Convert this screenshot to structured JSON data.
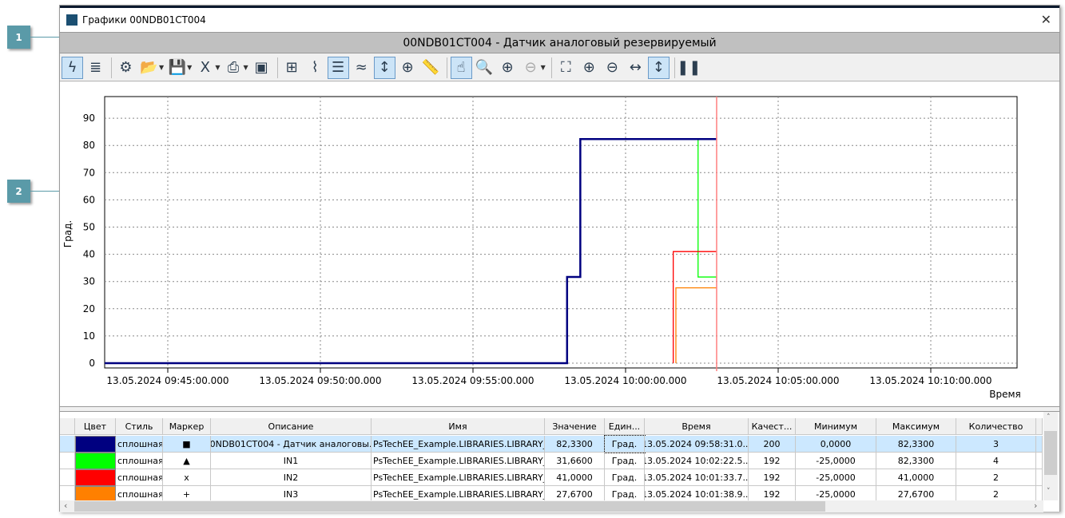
{
  "window": {
    "title": "Графики 00NDB01CT004",
    "close": "✕",
    "header": "00NDB01CT004 - Датчик аналоговый резервируемый"
  },
  "callouts": [
    "1",
    "2"
  ],
  "toolbar": [
    {
      "icon": "lightning-icon",
      "glyph": "ϟ",
      "on": true
    },
    {
      "icon": "database-icon",
      "glyph": "≣"
    },
    {
      "sep": true
    },
    {
      "icon": "gear-icon",
      "glyph": "⚙"
    },
    {
      "icon": "folder-open-icon",
      "glyph": "📂",
      "dd": true
    },
    {
      "icon": "save-icon",
      "glyph": "💾",
      "dd": true
    },
    {
      "icon": "excel-icon",
      "glyph": "X",
      "dd": true
    },
    {
      "icon": "print-icon",
      "glyph": "⎙",
      "dd": true
    },
    {
      "icon": "image-icon",
      "glyph": "▣"
    },
    {
      "sep": true
    },
    {
      "icon": "tree-icon",
      "glyph": "⊞"
    },
    {
      "icon": "signal-icon",
      "glyph": "⌇"
    },
    {
      "icon": "list-icon",
      "glyph": "☰",
      "on": true
    },
    {
      "icon": "trend-icon",
      "glyph": "≈"
    },
    {
      "icon": "vertical-fit-icon",
      "glyph": "↕",
      "on": true
    },
    {
      "icon": "target-icon",
      "glyph": "⊕"
    },
    {
      "icon": "ruler-eu-icon",
      "glyph": "📏"
    },
    {
      "sep": true
    },
    {
      "icon": "hand-pointer-icon",
      "glyph": "☝",
      "on": true
    },
    {
      "icon": "magnifier-icon",
      "glyph": "🔍"
    },
    {
      "icon": "add-marker-icon",
      "glyph": "⊕"
    },
    {
      "icon": "remove-marker-icon",
      "glyph": "⊖",
      "dis": true,
      "dd": true
    },
    {
      "sep": true
    },
    {
      "icon": "fit-all-icon",
      "glyph": "⛶"
    },
    {
      "icon": "zoom-in-icon",
      "glyph": "⊕"
    },
    {
      "icon": "zoom-out-icon",
      "glyph": "⊖"
    },
    {
      "icon": "horizontal-arrows-icon",
      "glyph": "↔"
    },
    {
      "icon": "vertical-arrows-icon",
      "glyph": "↕",
      "on": true
    },
    {
      "sep": true
    },
    {
      "icon": "pause-icon",
      "glyph": "❚❚"
    }
  ],
  "chart_data": {
    "type": "line",
    "step": true,
    "ylabel": "Град.",
    "xlabel": "Время",
    "ylim": [
      -1.8,
      97.8
    ],
    "yticks": [
      0,
      10,
      20,
      30,
      40,
      50,
      60,
      70,
      80,
      90
    ],
    "xlim": [
      "09:42:56",
      "10:12:50"
    ],
    "xticks": [
      "13.05.2024 09:45:00.000",
      "13.05.2024 09:50:00.000",
      "13.05.2024 09:55:00.000",
      "13.05.2024 10:00:00.000",
      "13.05.2024 10:05:00.000",
      "13.05.2024 10:10:00.000"
    ],
    "grid": true,
    "cursor": "10:02:59",
    "cursor_color": "#ff8080",
    "series": [
      {
        "color": "#00ff00",
        "points": [
          [
            "09:58:31",
            82.33
          ],
          [
            "10:02:22.5",
            31.66
          ]
        ]
      },
      {
        "color": "#ff0000",
        "points": [
          [
            "10:01:33.7",
            0
          ],
          [
            "10:01:33.7",
            41.0
          ]
        ]
      },
      {
        "color": "#ff8000",
        "points": [
          [
            "10:01:38.9",
            0
          ],
          [
            "10:01:38.9",
            27.67
          ]
        ]
      },
      {
        "color": "#000080",
        "points": [
          [
            "09:42:56",
            0
          ],
          [
            "09:58:05",
            31.66
          ],
          [
            "09:58:31",
            82.33
          ]
        ]
      }
    ]
  },
  "table": {
    "columns": [
      "",
      "Цвет",
      "Стиль",
      "Маркер",
      "Описание",
      "Имя",
      "Значение",
      "Един...",
      "Время",
      "Качест...",
      "Минимум",
      "Максимум",
      "Количество"
    ],
    "rows": [
      {
        "color": "#000080",
        "style": "сплошная",
        "marker": "■",
        "desc": "00NDB01CT004 - Датчик аналоговы...",
        "name": "PsTechEE_Example.LIBRARIES.LIBRARY_...",
        "value": "82,3300",
        "unit": "Град.",
        "time": "13.05.2024 09:58:31.0...",
        "quality": "200",
        "min": "0,0000",
        "max": "82,3300",
        "count": "3"
      },
      {
        "color": "#00ff00",
        "style": "сплошная",
        "marker": "▲",
        "desc": "IN1",
        "name": "PsTechEE_Example.LIBRARIES.LIBRARY_...",
        "value": "31,6600",
        "unit": "Град.",
        "time": "13.05.2024 10:02:22.5...",
        "quality": "192",
        "min": "-25,0000",
        "max": "82,3300",
        "count": "4"
      },
      {
        "color": "#ff0000",
        "style": "сплошная",
        "marker": "x",
        "desc": "IN2",
        "name": "PsTechEE_Example.LIBRARIES.LIBRARY_...",
        "value": "41,0000",
        "unit": "Град.",
        "time": "13.05.2024 10:01:33.7...",
        "quality": "192",
        "min": "-25,0000",
        "max": "41,0000",
        "count": "2"
      },
      {
        "color": "#ff8000",
        "style": "сплошная",
        "marker": "+",
        "desc": "IN3",
        "name": "PsTechEE_Example.LIBRARIES.LIBRARY_...",
        "value": "27,6700",
        "unit": "Град.",
        "time": "13.05.2024 10:01:38.9...",
        "quality": "192",
        "min": "-25,0000",
        "max": "27,6700",
        "count": "2"
      }
    ]
  }
}
